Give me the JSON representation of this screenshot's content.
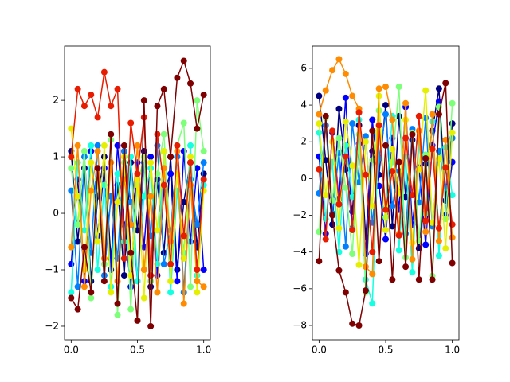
{
  "chart_data": [
    {
      "type": "line",
      "marker": "o",
      "x": [
        0,
        0.05,
        0.1,
        0.15,
        0.2,
        0.25,
        0.3,
        0.35,
        0.4,
        0.45,
        0.5,
        0.55,
        0.6,
        0.65,
        0.7,
        0.75,
        0.8,
        0.85,
        0.9,
        0.95,
        1
      ],
      "xlim": [
        -0.05,
        1.05
      ],
      "xticks": [
        {
          "value": 0,
          "label": "0.0"
        },
        {
          "value": 0.5,
          "label": "0.5"
        },
        {
          "value": 1,
          "label": "1.0"
        }
      ],
      "ylim": [
        -2.24,
        2.96
      ],
      "yticks": [
        {
          "value": -2,
          "label": "−2"
        },
        {
          "value": -1,
          "label": "−1"
        },
        0,
        1,
        2
      ],
      "series": [
        {
          "color": "#00007f",
          "values": [
            1.1,
            -0.5,
            0.8,
            -1.2,
            0.3,
            1.0,
            -0.8,
            0.5,
            -1.1,
            0.9,
            -0.3,
            1.1,
            -1.3,
            0.6,
            -0.7,
            1.0,
            -1.0,
            0.2,
            0.9,
            -0.6,
            0.7
          ]
        },
        {
          "color": "#0000ff",
          "values": [
            -0.9,
            0.6,
            -1.2,
            1.1,
            -0.4,
            0.8,
            -1.0,
            1.2,
            -0.2,
            -1.3,
            0.9,
            -0.6,
            1.0,
            -1.1,
            0.4,
            0.7,
            -1.2,
            1.1,
            -0.5,
            0.8,
            -1.0
          ]
        },
        {
          "color": "#0080ff",
          "values": [
            0.4,
            -1.3,
            1.0,
            -0.7,
            1.2,
            -1.1,
            0.3,
            -0.8,
            1.1,
            0.2,
            -1.2,
            0.9,
            -0.4,
            1.2,
            -0.9,
            -0.3,
            1.0,
            -1.4,
            0.6,
            -0.2,
            0.9
          ]
        },
        {
          "color": "#15ffe1",
          "values": [
            -1.4,
            0.9,
            -0.3,
            1.2,
            -1.0,
            0.5,
            -1.3,
            0.7,
            -0.5,
            1.0,
            -1.2,
            0.3,
            0.8,
            -0.9,
            1.1,
            -1.4,
            0.4,
            -0.7,
            1.2,
            -1.1,
            0.5
          ]
        },
        {
          "color": "#7dff7a",
          "values": [
            0.8,
            -0.2,
            1.1,
            -1.5,
            0.6,
            -0.9,
            1.3,
            -1.8,
            0.9,
            -1.7,
            0.5,
            1.0,
            -1.2,
            0.7,
            1.4,
            -0.6,
            1.2,
            1.6,
            -1.3,
            2.0,
            1.1
          ]
        },
        {
          "color": "#e5f000",
          "values": [
            1.5,
            0.3,
            -1.0,
            0.9,
            -0.5,
            1.2,
            -1.4,
            0.2,
            1.0,
            -1.1,
            0.6,
            -1.5,
            0.9,
            -0.3,
            1.1,
            -1.2,
            0.7,
            -0.8,
            1.0,
            -1.4,
            0.4
          ]
        },
        {
          "color": "#ff8c00",
          "values": [
            -0.6,
            1.2,
            -1.3,
            0.4,
            1.1,
            -0.8,
            0.9,
            -1.2,
            0.6,
            -0.2,
            1.2,
            -1.0,
            0.3,
            -1.4,
            0.8,
            -0.5,
            1.1,
            -1.6,
            0.5,
            -1.2,
            -1.3
          ]
        },
        {
          "color": "#e81c00",
          "values": [
            1.0,
            2.2,
            1.9,
            2.1,
            1.7,
            2.5,
            1.9,
            2.2,
            -0.8,
            1.6,
            0.7,
            1.7,
            -1.1,
            1.4,
            0.5,
            -0.9,
            1.2,
            -0.4,
            0.9,
            -1.0,
            0.6
          ]
        },
        {
          "color": "#7f0000",
          "values": [
            -1.5,
            -1.7,
            -0.6,
            -1.4,
            0.8,
            -1.2,
            1.4,
            -1.6,
            1.2,
            -0.7,
            -1.9,
            2.0,
            -2.0,
            1.9,
            2.2,
            1.0,
            2.4,
            2.7,
            2.3,
            1.5,
            2.1
          ]
        }
      ]
    },
    {
      "type": "line",
      "marker": "o",
      "x": [
        0,
        0.05,
        0.1,
        0.15,
        0.2,
        0.25,
        0.3,
        0.35,
        0.4,
        0.45,
        0.5,
        0.55,
        0.6,
        0.65,
        0.7,
        0.75,
        0.8,
        0.85,
        0.9,
        0.95,
        1
      ],
      "xlim": [
        -0.05,
        1.05
      ],
      "xticks": [
        {
          "value": 0,
          "label": "0.0"
        },
        {
          "value": 0.5,
          "label": "0.5"
        },
        {
          "value": 1,
          "label": "1.0"
        }
      ],
      "ylim": [
        -8.78,
        7.21
      ],
      "yticks": [
        {
          "value": -8,
          "label": "−8"
        },
        {
          "value": -6,
          "label": "−6"
        },
        {
          "value": -4,
          "label": "−4"
        },
        {
          "value": -2,
          "label": "−2"
        },
        0,
        2,
        4,
        6
      ],
      "series": [
        {
          "color": "#00007f",
          "values": [
            4.5,
            1.0,
            -2.5,
            3.8,
            0.5,
            -1.8,
            2.9,
            -3.2,
            1.5,
            0.2,
            4.0,
            -2.6,
            3.4,
            -1.0,
            2.1,
            -3.8,
            0.8,
            2.6,
            4.9,
            -1.2,
            3.0
          ]
        },
        {
          "color": "#0000ff",
          "values": [
            1.2,
            -3.0,
            2.5,
            -1.1,
            4.4,
            -2.7,
            1.9,
            -4.1,
            3.2,
            -0.4,
            -3.3,
            2.2,
            -1.7,
            3.9,
            -2.5,
            0.6,
            -3.6,
            1.8,
            4.2,
            -2.0,
            0.9
          ]
        },
        {
          "color": "#0080ff",
          "values": [
            -0.8,
            2.9,
            -1.9,
            1.4,
            -3.7,
            3.0,
            -0.2,
            2.3,
            -2.4,
            1.1,
            3.5,
            -1.5,
            0.4,
            -3.0,
            2.7,
            -1.3,
            3.3,
            -2.6,
            1.5,
            -0.5,
            2.2
          ]
        },
        {
          "color": "#15ffe1",
          "values": [
            2.5,
            -2.2,
            0.9,
            -4.0,
            1.8,
            -1.0,
            3.2,
            -5.5,
            -6.8,
            2.9,
            -1.6,
            3.4,
            -3.9,
            1.2,
            -5.1,
            2.0,
            -1.9,
            3.1,
            -4.2,
            1.7,
            -0.9
          ]
        },
        {
          "color": "#7dff7a",
          "values": [
            -2.9,
            3.3,
            -1.2,
            2.2,
            -0.5,
            -4.1,
            2.4,
            -6.2,
            1.0,
            3.7,
            -2.1,
            0.9,
            5.0,
            -4.3,
            2.5,
            -3.4,
            1.3,
            -5.3,
            3.9,
            -2.2,
            4.1
          ]
        },
        {
          "color": "#e5f000",
          "values": [
            3.0,
            -0.9,
            2.0,
            -2.7,
            3.1,
            0.7,
            -4.7,
            2.0,
            -1.5,
            4.5,
            -2.8,
            1.6,
            -0.8,
            3.2,
            -3.5,
            0.5,
            4.8,
            -2.4,
            1.1,
            -3.8,
            2.5
          ]
        },
        {
          "color": "#ff8c00",
          "values": [
            3.5,
            4.8,
            5.9,
            6.5,
            5.7,
            4.5,
            3.8,
            -4.8,
            -5.2,
            4.9,
            5.0,
            3.2,
            -3.0,
            4.1,
            -4.4,
            2.6,
            -2.9,
            3.5,
            -3.4,
            2.1,
            -3.2
          ]
        },
        {
          "color": "#e81c00",
          "values": [
            0.5,
            -3.3,
            2.6,
            -1.4,
            1.2,
            -2.8,
            3.6,
            0.2,
            -4.0,
            2.9,
            -1.7,
            0.4,
            -3.1,
            2.2,
            -0.9,
            3.4,
            -2.3,
            1.6,
            -2.7,
            0.6,
            -2.5
          ]
        },
        {
          "color": "#7f0000",
          "values": [
            -4.5,
            3.4,
            -2.0,
            -5.0,
            -6.2,
            -7.9,
            -8.0,
            -6.1,
            2.6,
            -4.5,
            1.8,
            -5.5,
            0.9,
            -4.8,
            2.4,
            -5.5,
            1.1,
            -5.5,
            3.5,
            5.2,
            -4.6
          ]
        }
      ]
    }
  ]
}
